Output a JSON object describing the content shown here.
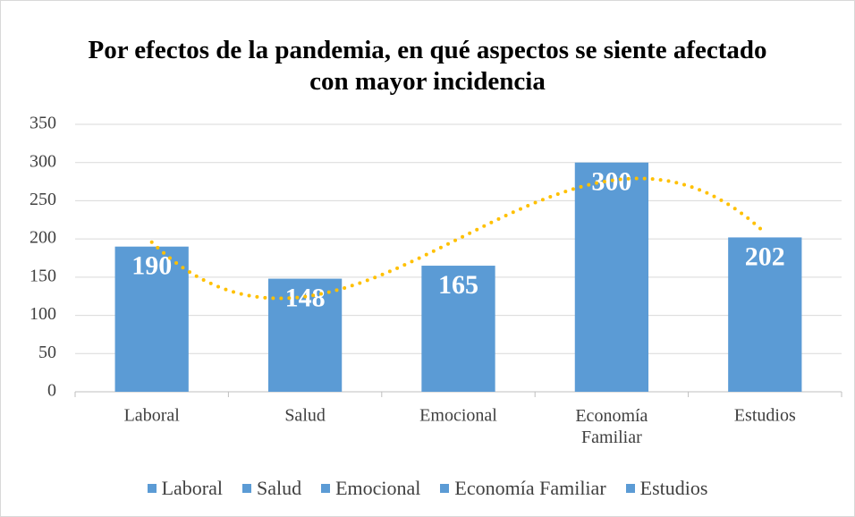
{
  "chart_data": {
    "type": "bar",
    "title": "Por efectos de la pandemia, en qué aspectos se siente afectado con mayor incidencia",
    "categories": [
      "Laboral",
      "Salud",
      "Emocional",
      "Economía Familiar",
      "Estudios"
    ],
    "values": [
      190,
      148,
      165,
      300,
      202
    ],
    "color": "#5b9bd5",
    "ylim": [
      0,
      350
    ],
    "yticks": [
      0,
      50,
      100,
      150,
      200,
      250,
      300,
      350
    ],
    "grid": true,
    "legend": "bottom",
    "trendline": {
      "type": "polynomial",
      "order": 3,
      "color": "#ffc000"
    }
  }
}
